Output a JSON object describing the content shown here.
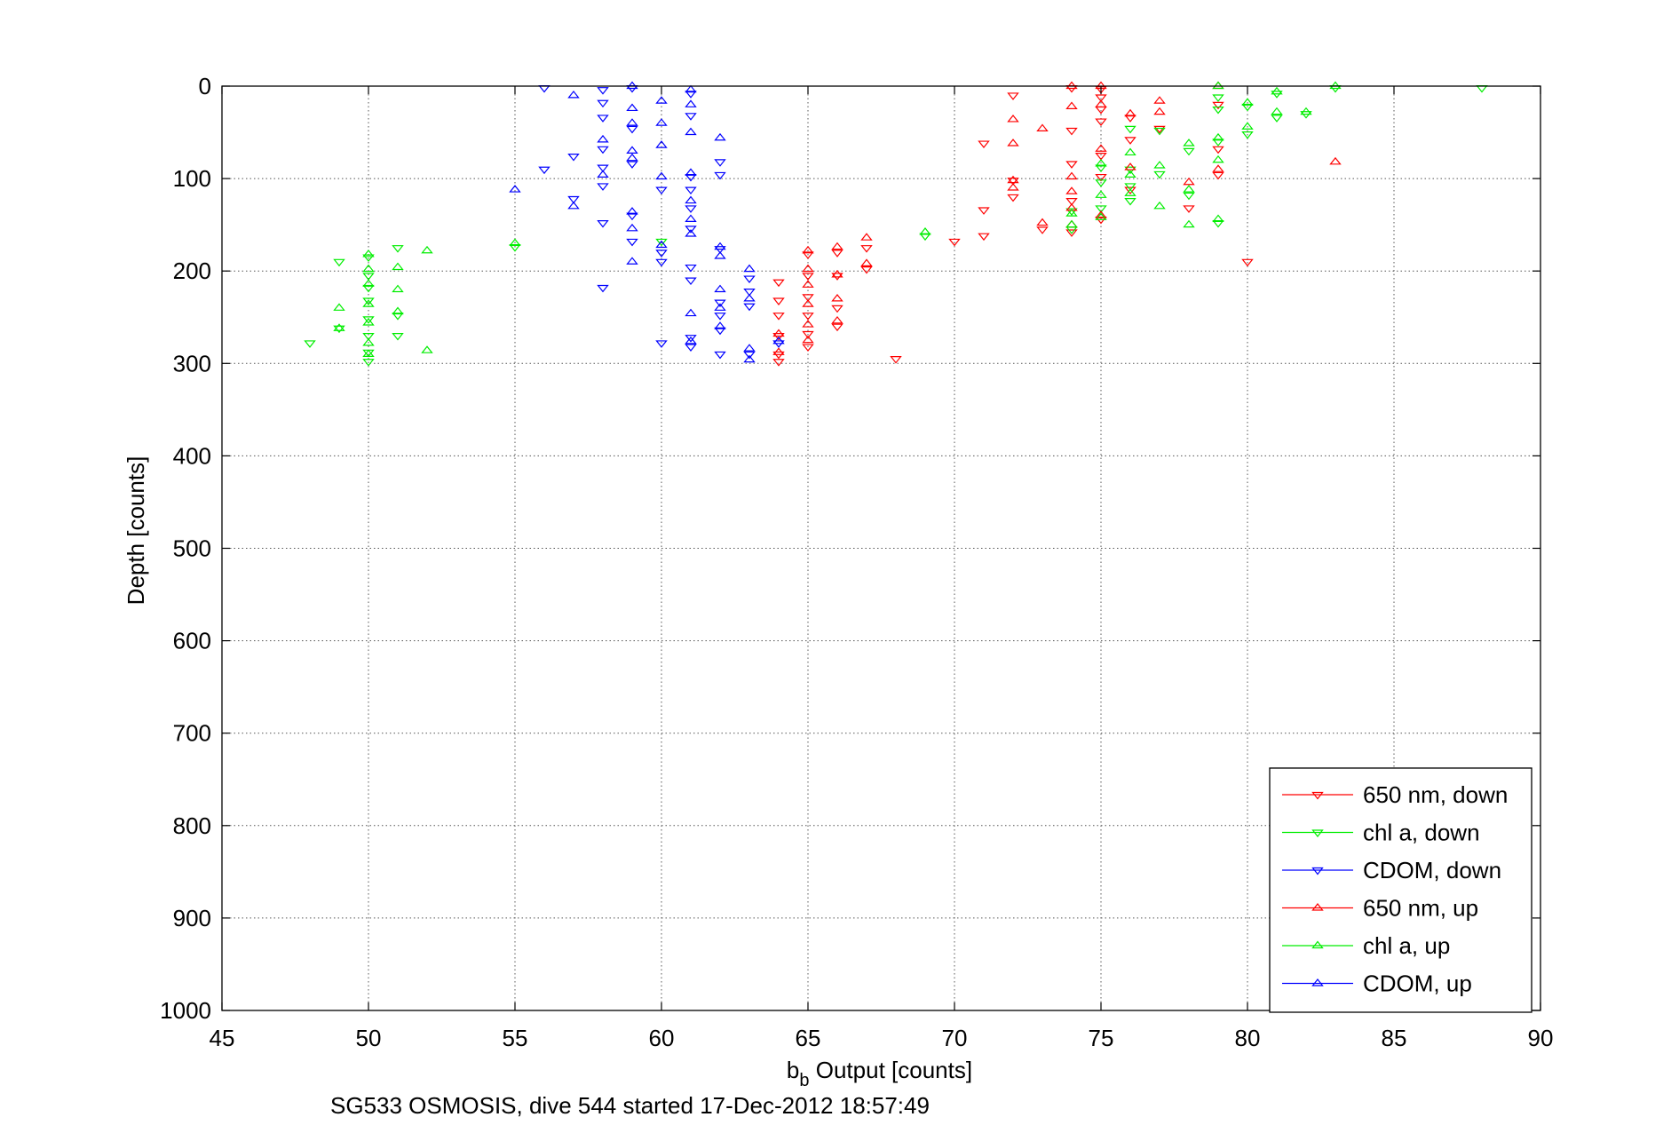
{
  "footer_text": "SG533 OSMOSIS, dive 544 started 17-Dec-2012 18:57:49",
  "chart_data": {
    "type": "scatter",
    "title": "",
    "xlabel_main": "b",
    "xlabel_sub": "b",
    "xlabel_rest": " Output [counts]",
    "ylabel": "Depth [counts]",
    "xlim": [
      45,
      90
    ],
    "ylim": [
      0,
      1000
    ],
    "y_reversed": true,
    "xticks": [
      45,
      50,
      55,
      60,
      65,
      70,
      75,
      80,
      85,
      90
    ],
    "yticks": [
      0,
      100,
      200,
      300,
      400,
      500,
      600,
      700,
      800,
      900,
      1000
    ],
    "grid": true,
    "legend_position": "bottom-right",
    "series": [
      {
        "name": "650 nm, down",
        "color": "#ff0000",
        "marker": "triangle-down",
        "points": [
          [
            64,
            212
          ],
          [
            64,
            232
          ],
          [
            64,
            248
          ],
          [
            64,
            270
          ],
          [
            64,
            290
          ],
          [
            64,
            298
          ],
          [
            65,
            182
          ],
          [
            65,
            205
          ],
          [
            65,
            228
          ],
          [
            65,
            248
          ],
          [
            65,
            268
          ],
          [
            65,
            282
          ],
          [
            66,
            180
          ],
          [
            66,
            205
          ],
          [
            66,
            240
          ],
          [
            66,
            260
          ],
          [
            67,
            175
          ],
          [
            67,
            198
          ],
          [
            68,
            295
          ],
          [
            70,
            168
          ],
          [
            71,
            62
          ],
          [
            71,
            134
          ],
          [
            71,
            162
          ],
          [
            72,
            10
          ],
          [
            72,
            102
          ],
          [
            72,
            120
          ],
          [
            73,
            155
          ],
          [
            74,
            2
          ],
          [
            74,
            48
          ],
          [
            74,
            84
          ],
          [
            74,
            124
          ],
          [
            74,
            158
          ],
          [
            75,
            3
          ],
          [
            75,
            12
          ],
          [
            75,
            25
          ],
          [
            75,
            38
          ],
          [
            75,
            75
          ],
          [
            75,
            98
          ],
          [
            75,
            144
          ],
          [
            76,
            58
          ],
          [
            76,
            34
          ],
          [
            76,
            112
          ],
          [
            77,
            46
          ],
          [
            78,
            132
          ],
          [
            79,
            20
          ],
          [
            79,
            68
          ],
          [
            79,
            96
          ],
          [
            80,
            190
          ]
        ]
      },
      {
        "name": "chl a, down",
        "color": "#00ee00",
        "marker": "triangle-down",
        "points": [
          [
            48,
            278
          ],
          [
            49,
            190
          ],
          [
            49,
            262
          ],
          [
            50,
            185
          ],
          [
            50,
            205
          ],
          [
            50,
            218
          ],
          [
            50,
            232
          ],
          [
            50,
            252
          ],
          [
            50,
            270
          ],
          [
            50,
            288
          ],
          [
            50,
            298
          ],
          [
            51,
            175
          ],
          [
            51,
            248
          ],
          [
            51,
            270
          ],
          [
            55,
            174
          ],
          [
            60,
            168
          ],
          [
            69,
            162
          ],
          [
            74,
            135
          ],
          [
            74,
            155
          ],
          [
            75,
            88
          ],
          [
            75,
            104
          ],
          [
            75,
            132
          ],
          [
            76,
            46
          ],
          [
            76,
            90
          ],
          [
            76,
            108
          ],
          [
            76,
            124
          ],
          [
            77,
            48
          ],
          [
            77,
            95
          ],
          [
            78,
            70
          ],
          [
            78,
            118
          ],
          [
            79,
            12
          ],
          [
            79,
            25
          ],
          [
            79,
            60
          ],
          [
            79,
            148
          ],
          [
            80,
            22
          ],
          [
            80,
            52
          ],
          [
            81,
            8
          ],
          [
            81,
            34
          ],
          [
            82,
            30
          ],
          [
            83,
            2
          ],
          [
            88,
            2
          ]
        ]
      },
      {
        "name": "CDOM, down",
        "color": "#0000ff",
        "marker": "triangle-down",
        "points": [
          [
            56,
            2
          ],
          [
            56,
            90
          ],
          [
            57,
            76
          ],
          [
            57,
            122
          ],
          [
            58,
            4
          ],
          [
            58,
            18
          ],
          [
            58,
            34
          ],
          [
            58,
            68
          ],
          [
            58,
            88
          ],
          [
            58,
            108
          ],
          [
            58,
            148
          ],
          [
            58,
            218
          ],
          [
            59,
            2
          ],
          [
            59,
            46
          ],
          [
            59,
            84
          ],
          [
            59,
            140
          ],
          [
            59,
            168
          ],
          [
            60,
            112
          ],
          [
            60,
            180
          ],
          [
            60,
            190
          ],
          [
            60,
            278
          ],
          [
            61,
            8
          ],
          [
            61,
            32
          ],
          [
            61,
            98
          ],
          [
            61,
            112
          ],
          [
            61,
            132
          ],
          [
            61,
            154
          ],
          [
            61,
            196
          ],
          [
            61,
            210
          ],
          [
            61,
            272
          ],
          [
            61,
            282
          ],
          [
            62,
            82
          ],
          [
            62,
            96
          ],
          [
            62,
            176
          ],
          [
            62,
            234
          ],
          [
            62,
            248
          ],
          [
            62,
            264
          ],
          [
            62,
            290
          ],
          [
            63,
            208
          ],
          [
            63,
            222
          ],
          [
            63,
            238
          ],
          [
            63,
            290
          ],
          [
            64,
            278
          ]
        ]
      },
      {
        "name": "650 nm, up",
        "color": "#ff0000",
        "marker": "triangle-up",
        "points": [
          [
            64,
            268
          ],
          [
            64,
            288
          ],
          [
            65,
            178
          ],
          [
            65,
            198
          ],
          [
            65,
            215
          ],
          [
            65,
            236
          ],
          [
            65,
            258
          ],
          [
            65,
            275
          ],
          [
            66,
            174
          ],
          [
            66,
            204
          ],
          [
            66,
            230
          ],
          [
            66,
            254
          ],
          [
            67,
            164
          ],
          [
            67,
            192
          ],
          [
            72,
            36
          ],
          [
            72,
            62
          ],
          [
            72,
            102
          ],
          [
            72,
            110
          ],
          [
            73,
            46
          ],
          [
            73,
            148
          ],
          [
            74,
            0
          ],
          [
            74,
            22
          ],
          [
            74,
            98
          ],
          [
            74,
            114
          ],
          [
            74,
            132
          ],
          [
            74,
            150
          ],
          [
            75,
            0
          ],
          [
            75,
            20
          ],
          [
            75,
            68
          ],
          [
            75,
            140
          ],
          [
            76,
            30
          ],
          [
            76,
            88
          ],
          [
            77,
            16
          ],
          [
            77,
            28
          ],
          [
            78,
            104
          ],
          [
            79,
            0
          ],
          [
            79,
            90
          ],
          [
            83,
            82
          ]
        ]
      },
      {
        "name": "chl a, up",
        "color": "#00ee00",
        "marker": "triangle-up",
        "points": [
          [
            49,
            240
          ],
          [
            49,
            262
          ],
          [
            50,
            182
          ],
          [
            50,
            198
          ],
          [
            50,
            214
          ],
          [
            50,
            236
          ],
          [
            50,
            256
          ],
          [
            50,
            278
          ],
          [
            50,
            290
          ],
          [
            51,
            196
          ],
          [
            51,
            220
          ],
          [
            51,
            244
          ],
          [
            52,
            178
          ],
          [
            52,
            286
          ],
          [
            55,
            170
          ],
          [
            69,
            158
          ],
          [
            74,
            150
          ],
          [
            74,
            138
          ],
          [
            75,
            84
          ],
          [
            75,
            118
          ],
          [
            75,
            142
          ],
          [
            76,
            72
          ],
          [
            76,
            96
          ],
          [
            76,
            116
          ],
          [
            77,
            86
          ],
          [
            77,
            130
          ],
          [
            78,
            62
          ],
          [
            78,
            112
          ],
          [
            78,
            150
          ],
          [
            79,
            0
          ],
          [
            79,
            56
          ],
          [
            79,
            80
          ],
          [
            79,
            144
          ],
          [
            80,
            18
          ],
          [
            80,
            44
          ],
          [
            81,
            6
          ],
          [
            81,
            28
          ],
          [
            82,
            28
          ],
          [
            83,
            0
          ]
        ]
      },
      {
        "name": "CDOM, up",
        "color": "#0000ff",
        "marker": "triangle-up",
        "points": [
          [
            55,
            112
          ],
          [
            57,
            10
          ],
          [
            57,
            130
          ],
          [
            58,
            58
          ],
          [
            58,
            96
          ],
          [
            59,
            0
          ],
          [
            59,
            24
          ],
          [
            59,
            40
          ],
          [
            59,
            70
          ],
          [
            59,
            78
          ],
          [
            59,
            136
          ],
          [
            59,
            154
          ],
          [
            59,
            190
          ],
          [
            60,
            16
          ],
          [
            60,
            40
          ],
          [
            60,
            64
          ],
          [
            60,
            98
          ],
          [
            60,
            172
          ],
          [
            61,
            4
          ],
          [
            61,
            20
          ],
          [
            61,
            50
          ],
          [
            61,
            94
          ],
          [
            61,
            124
          ],
          [
            61,
            144
          ],
          [
            61,
            160
          ],
          [
            61,
            246
          ],
          [
            61,
            276
          ],
          [
            62,
            56
          ],
          [
            62,
            174
          ],
          [
            62,
            184
          ],
          [
            62,
            220
          ],
          [
            62,
            240
          ],
          [
            62,
            260
          ],
          [
            63,
            198
          ],
          [
            63,
            230
          ],
          [
            63,
            284
          ],
          [
            63,
            296
          ],
          [
            64,
            276
          ]
        ]
      }
    ]
  }
}
